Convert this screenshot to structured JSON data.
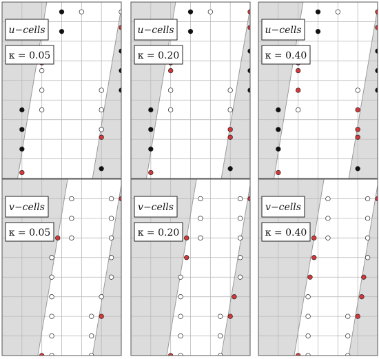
{
  "colors": {
    "shade": "#dcdcdc",
    "grid": "#b9b9b9",
    "border": "#555555",
    "filled": "#111111",
    "cut": "#d6383a",
    "open": "#ffffff"
  },
  "panels": [
    {
      "cells_label": "u−cells",
      "kappa_label": "κ = 0.05",
      "row": 0,
      "col": 0,
      "boundary": {
        "left": [
          [
            0.78,
            9.0
          ],
          [
            2.25,
            0.0
          ]
        ],
        "right": [
          [
            4.55,
            9.0
          ],
          [
            6.05,
            0.0
          ]
        ]
      },
      "points": [
        {
          "x": 3.0,
          "y": 0.5,
          "kind": "filled"
        },
        {
          "x": 4.0,
          "y": 0.5,
          "kind": "open"
        },
        {
          "x": 6.0,
          "y": 0.5,
          "kind": "open"
        },
        {
          "x": 3.0,
          "y": 1.5,
          "kind": "filled"
        },
        {
          "x": 6.0,
          "y": 1.3,
          "kind": "cut"
        },
        {
          "x": 6.0,
          "y": 2.5,
          "kind": "filled"
        },
        {
          "x": 2.0,
          "y": 3.1,
          "kind": "cut"
        },
        {
          "x": 2.0,
          "y": 3.5,
          "kind": "open"
        },
        {
          "x": 6.0,
          "y": 3.5,
          "kind": "filled"
        },
        {
          "x": 2.0,
          "y": 4.5,
          "kind": "open"
        },
        {
          "x": 5.0,
          "y": 4.5,
          "kind": "open"
        },
        {
          "x": 6.0,
          "y": 4.5,
          "kind": "filled"
        },
        {
          "x": 1.0,
          "y": 5.5,
          "kind": "filled"
        },
        {
          "x": 2.0,
          "y": 5.5,
          "kind": "open"
        },
        {
          "x": 5.0,
          "y": 5.5,
          "kind": "open"
        },
        {
          "x": 1.0,
          "y": 6.5,
          "kind": "filled"
        },
        {
          "x": 5.0,
          "y": 6.5,
          "kind": "open"
        },
        {
          "x": 5.0,
          "y": 6.9,
          "kind": "cut"
        },
        {
          "x": 1.0,
          "y": 7.5,
          "kind": "filled"
        },
        {
          "x": 1.0,
          "y": 8.7,
          "kind": "cut"
        },
        {
          "x": 5.0,
          "y": 8.5,
          "kind": "filled"
        }
      ]
    },
    {
      "cells_label": "u−cells",
      "kappa_label": "κ = 0.20",
      "row": 0,
      "col": 1,
      "boundary": {
        "left": [
          [
            0.78,
            9.0
          ],
          [
            2.25,
            0.0
          ]
        ],
        "right": [
          [
            4.55,
            9.0
          ],
          [
            6.05,
            0.0
          ]
        ]
      },
      "points": [
        {
          "x": 3.0,
          "y": 0.5,
          "kind": "filled"
        },
        {
          "x": 4.0,
          "y": 0.5,
          "kind": "open"
        },
        {
          "x": 6.0,
          "y": 0.5,
          "kind": "cut"
        },
        {
          "x": 3.0,
          "y": 1.5,
          "kind": "filled"
        },
        {
          "x": 6.0,
          "y": 1.3,
          "kind": "cut"
        },
        {
          "x": 6.0,
          "y": 2.5,
          "kind": "filled"
        },
        {
          "x": 2.0,
          "y": 3.1,
          "kind": "cut"
        },
        {
          "x": 2.0,
          "y": 3.5,
          "kind": "cut"
        },
        {
          "x": 6.0,
          "y": 3.5,
          "kind": "filled"
        },
        {
          "x": 2.0,
          "y": 4.5,
          "kind": "open"
        },
        {
          "x": 5.0,
          "y": 4.5,
          "kind": "open"
        },
        {
          "x": 6.0,
          "y": 4.5,
          "kind": "filled"
        },
        {
          "x": 1.0,
          "y": 5.5,
          "kind": "filled"
        },
        {
          "x": 2.0,
          "y": 5.5,
          "kind": "open"
        },
        {
          "x": 5.0,
          "y": 5.5,
          "kind": "open"
        },
        {
          "x": 1.0,
          "y": 6.5,
          "kind": "filled"
        },
        {
          "x": 5.0,
          "y": 6.5,
          "kind": "cut"
        },
        {
          "x": 5.0,
          "y": 6.9,
          "kind": "cut"
        },
        {
          "x": 1.0,
          "y": 7.5,
          "kind": "filled"
        },
        {
          "x": 1.0,
          "y": 8.7,
          "kind": "cut"
        },
        {
          "x": 5.0,
          "y": 8.5,
          "kind": "filled"
        }
      ]
    },
    {
      "cells_label": "u−cells",
      "kappa_label": "κ = 0.40",
      "row": 0,
      "col": 2,
      "boundary": {
        "left": [
          [
            0.78,
            9.0
          ],
          [
            2.25,
            0.0
          ]
        ],
        "right": [
          [
            4.55,
            9.0
          ],
          [
            6.05,
            0.0
          ]
        ]
      },
      "points": [
        {
          "x": 3.0,
          "y": 0.5,
          "kind": "filled"
        },
        {
          "x": 4.0,
          "y": 0.5,
          "kind": "open"
        },
        {
          "x": 6.0,
          "y": 0.5,
          "kind": "cut"
        },
        {
          "x": 3.0,
          "y": 1.5,
          "kind": "filled"
        },
        {
          "x": 6.0,
          "y": 1.3,
          "kind": "cut"
        },
        {
          "x": 6.0,
          "y": 2.5,
          "kind": "filled"
        },
        {
          "x": 2.0,
          "y": 3.1,
          "kind": "cut"
        },
        {
          "x": 2.0,
          "y": 3.5,
          "kind": "cut"
        },
        {
          "x": 6.0,
          "y": 3.5,
          "kind": "filled"
        },
        {
          "x": 2.0,
          "y": 4.5,
          "kind": "cut"
        },
        {
          "x": 5.0,
          "y": 4.5,
          "kind": "open"
        },
        {
          "x": 6.0,
          "y": 4.5,
          "kind": "filled"
        },
        {
          "x": 1.0,
          "y": 5.5,
          "kind": "filled"
        },
        {
          "x": 2.0,
          "y": 5.5,
          "kind": "open"
        },
        {
          "x": 5.0,
          "y": 5.5,
          "kind": "cut"
        },
        {
          "x": 1.0,
          "y": 6.5,
          "kind": "filled"
        },
        {
          "x": 5.0,
          "y": 6.5,
          "kind": "cut"
        },
        {
          "x": 5.0,
          "y": 6.9,
          "kind": "cut"
        },
        {
          "x": 1.0,
          "y": 7.5,
          "kind": "filled"
        },
        {
          "x": 1.0,
          "y": 8.7,
          "kind": "cut"
        },
        {
          "x": 5.0,
          "y": 8.5,
          "kind": "filled"
        }
      ]
    },
    {
      "cells_label": "v−cells",
      "kappa_label": "κ = 0.05",
      "row": 1,
      "col": 0,
      "boundary": {
        "left": [
          [
            1.8,
            9.0
          ],
          [
            3.3,
            0.0
          ]
        ],
        "right": [
          [
            4.55,
            9.0
          ],
          [
            6.05,
            0.0
          ]
        ]
      },
      "points": [
        {
          "x": 3.5,
          "y": 1.0,
          "kind": "open"
        },
        {
          "x": 5.5,
          "y": 1.0,
          "kind": "open"
        },
        {
          "x": 6.0,
          "y": 1.0,
          "kind": "cut"
        },
        {
          "x": 3.5,
          "y": 2.0,
          "kind": "open"
        },
        {
          "x": 5.5,
          "y": 2.0,
          "kind": "open"
        },
        {
          "x": 2.8,
          "y": 3.0,
          "kind": "cut"
        },
        {
          "x": 3.5,
          "y": 3.0,
          "kind": "open"
        },
        {
          "x": 5.5,
          "y": 3.0,
          "kind": "open"
        },
        {
          "x": 2.5,
          "y": 4.0,
          "kind": "open"
        },
        {
          "x": 5.5,
          "y": 4.0,
          "kind": "open"
        },
        {
          "x": 2.5,
          "y": 5.0,
          "kind": "open"
        },
        {
          "x": 5.5,
          "y": 5.0,
          "kind": "open"
        },
        {
          "x": 2.5,
          "y": 6.0,
          "kind": "open"
        },
        {
          "x": 5.0,
          "y": 6.0,
          "kind": "open"
        },
        {
          "x": 2.5,
          "y": 7.0,
          "kind": "open"
        },
        {
          "x": 4.5,
          "y": 7.0,
          "kind": "open"
        },
        {
          "x": 5.0,
          "y": 7.0,
          "kind": "cut"
        },
        {
          "x": 2.5,
          "y": 8.0,
          "kind": "open"
        },
        {
          "x": 4.5,
          "y": 8.0,
          "kind": "open"
        },
        {
          "x": 2.0,
          "y": 9.0,
          "kind": "cut"
        },
        {
          "x": 2.5,
          "y": 9.0,
          "kind": "open"
        },
        {
          "x": 4.5,
          "y": 9.0,
          "kind": "open"
        }
      ]
    },
    {
      "cells_label": "v−cells",
      "kappa_label": "κ = 0.20",
      "row": 1,
      "col": 1,
      "boundary": {
        "left": [
          [
            1.8,
            9.0
          ],
          [
            3.3,
            0.0
          ]
        ],
        "right": [
          [
            4.55,
            9.0
          ],
          [
            6.05,
            0.0
          ]
        ]
      },
      "points": [
        {
          "x": 3.5,
          "y": 1.0,
          "kind": "open"
        },
        {
          "x": 5.5,
          "y": 1.0,
          "kind": "open"
        },
        {
          "x": 6.0,
          "y": 1.0,
          "kind": "cut"
        },
        {
          "x": 3.5,
          "y": 2.0,
          "kind": "open"
        },
        {
          "x": 5.5,
          "y": 2.0,
          "kind": "open"
        },
        {
          "x": 2.8,
          "y": 3.0,
          "kind": "cut"
        },
        {
          "x": 3.5,
          "y": 3.0,
          "kind": "open"
        },
        {
          "x": 5.5,
          "y": 3.0,
          "kind": "open"
        },
        {
          "x": 2.8,
          "y": 4.0,
          "kind": "cut"
        },
        {
          "x": 5.5,
          "y": 4.0,
          "kind": "open"
        },
        {
          "x": 2.5,
          "y": 5.0,
          "kind": "open"
        },
        {
          "x": 5.5,
          "y": 5.0,
          "kind": "open"
        },
        {
          "x": 2.5,
          "y": 6.0,
          "kind": "open"
        },
        {
          "x": 5.2,
          "y": 6.0,
          "kind": "cut"
        },
        {
          "x": 2.5,
          "y": 7.0,
          "kind": "open"
        },
        {
          "x": 4.5,
          "y": 7.0,
          "kind": "open"
        },
        {
          "x": 5.0,
          "y": 7.0,
          "kind": "cut"
        },
        {
          "x": 2.5,
          "y": 8.0,
          "kind": "open"
        },
        {
          "x": 4.5,
          "y": 8.0,
          "kind": "open"
        },
        {
          "x": 2.0,
          "y": 9.0,
          "kind": "cut"
        },
        {
          "x": 2.5,
          "y": 9.0,
          "kind": "open"
        },
        {
          "x": 4.5,
          "y": 9.0,
          "kind": "open"
        }
      ]
    },
    {
      "cells_label": "v−cells",
      "kappa_label": "κ = 0.40",
      "row": 1,
      "col": 2,
      "boundary": {
        "left": [
          [
            1.8,
            9.0
          ],
          [
            3.3,
            0.0
          ]
        ],
        "right": [
          [
            4.55,
            9.0
          ],
          [
            6.05,
            0.0
          ]
        ]
      },
      "points": [
        {
          "x": 3.5,
          "y": 1.0,
          "kind": "open"
        },
        {
          "x": 5.5,
          "y": 1.0,
          "kind": "open"
        },
        {
          "x": 6.0,
          "y": 1.0,
          "kind": "cut"
        },
        {
          "x": 3.5,
          "y": 2.0,
          "kind": "open"
        },
        {
          "x": 5.5,
          "y": 2.0,
          "kind": "open"
        },
        {
          "x": 2.8,
          "y": 3.0,
          "kind": "cut"
        },
        {
          "x": 3.5,
          "y": 3.0,
          "kind": "open"
        },
        {
          "x": 5.5,
          "y": 3.0,
          "kind": "open"
        },
        {
          "x": 2.8,
          "y": 4.0,
          "kind": "cut"
        },
        {
          "x": 5.5,
          "y": 4.0,
          "kind": "open"
        },
        {
          "x": 2.6,
          "y": 5.0,
          "kind": "cut"
        },
        {
          "x": 5.3,
          "y": 5.0,
          "kind": "cut"
        },
        {
          "x": 2.5,
          "y": 6.0,
          "kind": "open"
        },
        {
          "x": 5.2,
          "y": 6.0,
          "kind": "cut"
        },
        {
          "x": 2.5,
          "y": 7.0,
          "kind": "open"
        },
        {
          "x": 4.5,
          "y": 7.0,
          "kind": "open"
        },
        {
          "x": 5.0,
          "y": 7.0,
          "kind": "cut"
        },
        {
          "x": 2.5,
          "y": 8.0,
          "kind": "open"
        },
        {
          "x": 4.5,
          "y": 8.0,
          "kind": "open"
        },
        {
          "x": 2.0,
          "y": 9.0,
          "kind": "cut"
        },
        {
          "x": 2.5,
          "y": 9.0,
          "kind": "open"
        },
        {
          "x": 4.5,
          "y": 9.0,
          "kind": "open"
        }
      ]
    }
  ]
}
